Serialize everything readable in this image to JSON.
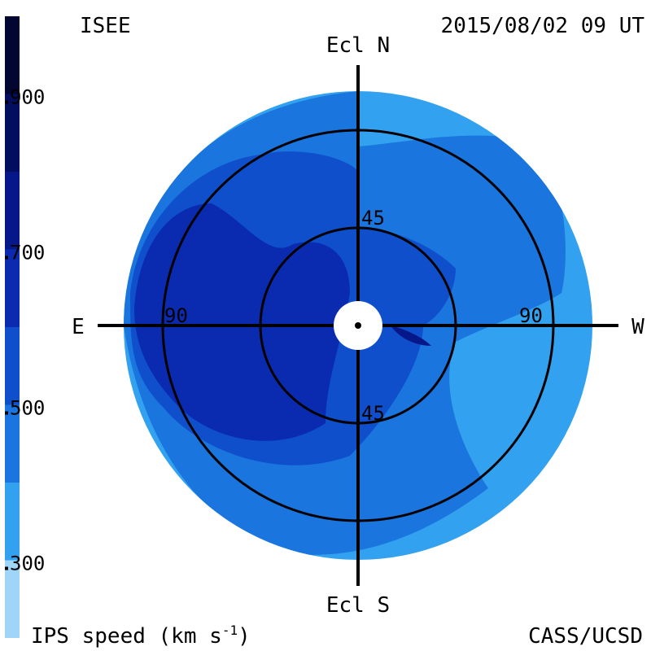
{
  "header": {
    "observatory": "ISEE",
    "timestamp": "2015/08/02 09 UT"
  },
  "footer": {
    "quantity_label": "IPS speed (km s",
    "unit_exponent": "-1",
    "unit_close": ")",
    "credit": "CASS/UCSD"
  },
  "directions": {
    "north": "Ecl N",
    "south": "Ecl S",
    "east": "E",
    "west": "W"
  },
  "elongation_rings": [
    {
      "value": 45,
      "label_north": "45",
      "label_south": "45"
    },
    {
      "value": 90,
      "label_east": "90",
      "label_west": "90"
    }
  ],
  "color_scale": {
    "unit": "km s-1",
    "ticks": [
      {
        "value": 300,
        "label": "300"
      },
      {
        "value": 500,
        "label": "500"
      },
      {
        "value": 700,
        "label": "700"
      },
      {
        "value": 900,
        "label": "900"
      }
    ],
    "bands": [
      {
        "from": 200,
        "to": 300,
        "color": "#9fd6f8"
      },
      {
        "from": 300,
        "to": 400,
        "color": "#32a1ef"
      },
      {
        "from": 400,
        "to": 500,
        "color": "#1a75de"
      },
      {
        "from": 500,
        "to": 600,
        "color": "#0f4fcb"
      },
      {
        "from": 600,
        "to": 700,
        "color": "#0a2bb0"
      },
      {
        "from": 700,
        "to": 800,
        "color": "#061889"
      },
      {
        "from": 800,
        "to": 900,
        "color": "#040e5e"
      },
      {
        "from": 900,
        "to": 1000,
        "color": "#020631"
      }
    ]
  },
  "colors": {
    "ring_stroke": "#000000",
    "sun_disc": "#ffffff"
  }
}
